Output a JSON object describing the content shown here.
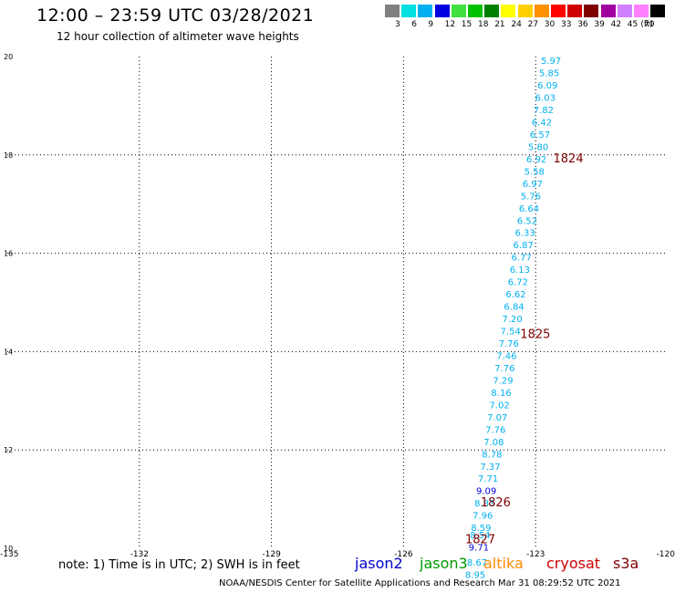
{
  "header": {
    "title": "12:00 – 23:59 UTC 03/28/2021",
    "subtitle": "12 hour collection of altimeter wave heights"
  },
  "legend": {
    "unit": "(ft)",
    "items": [
      {
        "label": "3",
        "color": "#808080"
      },
      {
        "label": "6",
        "color": "#00e0e0"
      },
      {
        "label": "9",
        "color": "#00b0f0"
      },
      {
        "label": "12",
        "color": "#0000e0"
      },
      {
        "label": "15",
        "color": "#40e040"
      },
      {
        "label": "18",
        "color": "#00c000"
      },
      {
        "label": "21",
        "color": "#008000"
      },
      {
        "label": "24",
        "color": "#ffff00"
      },
      {
        "label": "27",
        "color": "#ffd000"
      },
      {
        "label": "30",
        "color": "#ff9000"
      },
      {
        "label": "33",
        "color": "#ff0000"
      },
      {
        "label": "36",
        "color": "#d00000"
      },
      {
        "label": "39",
        "color": "#800000"
      },
      {
        "label": "42",
        "color": "#a000a0"
      },
      {
        "label": "45",
        "color": "#d080ff"
      },
      {
        "label": "70",
        "color": "#ff80ff"
      },
      {
        "label": "",
        "color": "#000000"
      }
    ]
  },
  "footer": {
    "note": "note:  1) Time is in UTC;  2) SWH is in feet",
    "satellites": [
      {
        "name": "jason2",
        "color": "#0000cc"
      },
      {
        "name": "jason3",
        "color": "#009900"
      },
      {
        "name": "altika",
        "color": "#ff8c00"
      },
      {
        "name": "cryosat",
        "color": "#cc0000"
      },
      {
        "name": "s3a",
        "color": "#800000"
      }
    ],
    "credit": "NOAA/NESDIS Center for Satellite Applications and Research      Mar 31 08:29:52 UTC 2021"
  },
  "chart_data": {
    "type": "scatter",
    "xlim": [
      -135,
      -120
    ],
    "ylim": [
      10,
      20
    ],
    "x_ticks": [
      "-135",
      "-132",
      "-129",
      "-126",
      "-123",
      "-120"
    ],
    "y_ticks": [
      "10",
      "12",
      "14",
      "16",
      "18",
      "20"
    ],
    "grid": true,
    "points": [
      {
        "lon": -122.65,
        "lat": 19.85,
        "label": "5.97",
        "color": "#00b0f0"
      },
      {
        "lon": -122.69,
        "lat": 19.6,
        "label": "5.85",
        "color": "#00b0f0"
      },
      {
        "lon": -122.73,
        "lat": 19.35,
        "label": "6.09",
        "color": "#00b0f0"
      },
      {
        "lon": -122.78,
        "lat": 19.1,
        "label": "6.03",
        "color": "#00b0f0"
      },
      {
        "lon": -122.82,
        "lat": 18.85,
        "label": "7.82",
        "color": "#00b0f0"
      },
      {
        "lon": -122.86,
        "lat": 18.6,
        "label": "6.42",
        "color": "#00b0f0"
      },
      {
        "lon": -122.9,
        "lat": 18.35,
        "label": "6.57",
        "color": "#00b0f0"
      },
      {
        "lon": -122.94,
        "lat": 18.1,
        "label": "5.80",
        "color": "#00b0f0"
      },
      {
        "lon": -122.98,
        "lat": 17.85,
        "label": "6.92",
        "color": "#00b0f0"
      },
      {
        "lon": -123.03,
        "lat": 17.6,
        "label": "5.58",
        "color": "#00b0f0"
      },
      {
        "lon": -123.07,
        "lat": 17.35,
        "label": "6.97",
        "color": "#00b0f0"
      },
      {
        "lon": -123.11,
        "lat": 17.1,
        "label": "5.76",
        "color": "#00b0f0"
      },
      {
        "lon": -123.15,
        "lat": 16.85,
        "label": "6.64",
        "color": "#00b0f0"
      },
      {
        "lon": -123.19,
        "lat": 16.6,
        "label": "6.52",
        "color": "#00b0f0"
      },
      {
        "lon": -123.24,
        "lat": 16.35,
        "label": "6.33",
        "color": "#00b0f0"
      },
      {
        "lon": -123.28,
        "lat": 16.1,
        "label": "6.87",
        "color": "#00b0f0"
      },
      {
        "lon": -123.32,
        "lat": 15.85,
        "label": "6.77",
        "color": "#00b0f0"
      },
      {
        "lon": -123.36,
        "lat": 15.6,
        "label": "6.13",
        "color": "#00b0f0"
      },
      {
        "lon": -123.4,
        "lat": 15.35,
        "label": "6.72",
        "color": "#00b0f0"
      },
      {
        "lon": -123.45,
        "lat": 15.1,
        "label": "6.62",
        "color": "#00b0f0"
      },
      {
        "lon": -123.49,
        "lat": 14.85,
        "label": "6.84",
        "color": "#00b0f0"
      },
      {
        "lon": -123.53,
        "lat": 14.6,
        "label": "7.20",
        "color": "#00b0f0"
      },
      {
        "lon": -123.57,
        "lat": 14.35,
        "label": "7.54",
        "color": "#00b0f0"
      },
      {
        "lon": -123.61,
        "lat": 14.1,
        "label": "7.76",
        "color": "#00b0f0"
      },
      {
        "lon": -123.66,
        "lat": 13.85,
        "label": "7.46",
        "color": "#00b0f0"
      },
      {
        "lon": -123.7,
        "lat": 13.6,
        "label": "7.76",
        "color": "#00b0f0"
      },
      {
        "lon": -123.74,
        "lat": 13.35,
        "label": "7.29",
        "color": "#00b0f0"
      },
      {
        "lon": -123.78,
        "lat": 13.1,
        "label": "8.16",
        "color": "#00b0f0"
      },
      {
        "lon": -123.82,
        "lat": 12.85,
        "label": "7.02",
        "color": "#00b0f0"
      },
      {
        "lon": -123.87,
        "lat": 12.6,
        "label": "7.07",
        "color": "#00b0f0"
      },
      {
        "lon": -123.91,
        "lat": 12.35,
        "label": "7.76",
        "color": "#00b0f0"
      },
      {
        "lon": -123.95,
        "lat": 12.1,
        "label": "7.08",
        "color": "#00b0f0"
      },
      {
        "lon": -123.99,
        "lat": 11.85,
        "label": "8.78",
        "color": "#00b0f0"
      },
      {
        "lon": -124.03,
        "lat": 11.6,
        "label": "7.37",
        "color": "#00b0f0"
      },
      {
        "lon": -124.08,
        "lat": 11.35,
        "label": "7.71",
        "color": "#00b0f0"
      },
      {
        "lon": -124.12,
        "lat": 11.1,
        "label": "9.09",
        "color": "#0000e0"
      },
      {
        "lon": -124.16,
        "lat": 10.85,
        "label": "8.83",
        "color": "#00b0f0"
      },
      {
        "lon": -124.2,
        "lat": 10.6,
        "label": "7.96",
        "color": "#00b0f0"
      },
      {
        "lon": -124.24,
        "lat": 10.35,
        "label": "8.59",
        "color": "#00b0f0"
      },
      {
        "lon": -124.26,
        "lat": 10.2,
        "label": "8.54",
        "color": "#00b0f0"
      },
      {
        "lon": -124.29,
        "lat": 9.95,
        "label": "9.71",
        "color": "#0000e0"
      },
      {
        "lon": -124.33,
        "lat": 9.65,
        "label": "8.67",
        "color": "#00b0f0"
      },
      {
        "lon": -124.37,
        "lat": 9.4,
        "label": "8.95",
        "color": "#00b0f0"
      }
    ],
    "time_labels": [
      {
        "lon": -122.6,
        "lat": 17.85,
        "label": "1824",
        "color": "#800000"
      },
      {
        "lon": -123.35,
        "lat": 14.28,
        "label": "1825",
        "color": "#800000"
      },
      {
        "lon": -124.25,
        "lat": 10.85,
        "label": "1826",
        "color": "#800000"
      },
      {
        "lon": -124.6,
        "lat": 10.1,
        "label": "1827",
        "color": "#800000"
      }
    ]
  }
}
